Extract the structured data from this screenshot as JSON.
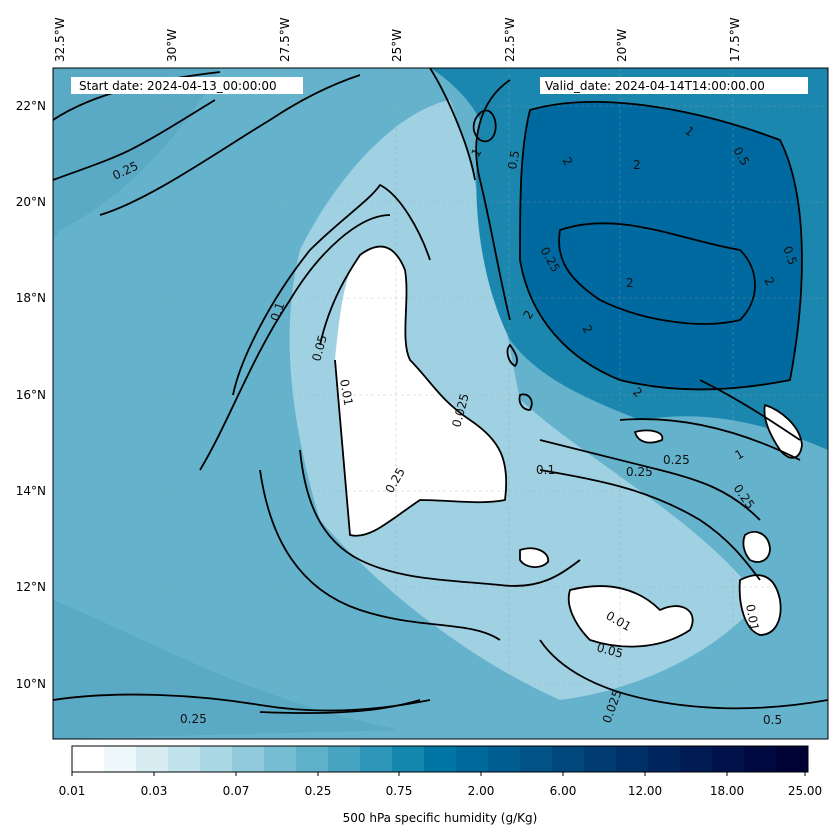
{
  "header": {
    "start_date": "Start date: 2024-04-13_00:00:00",
    "valid_date": "Valid_date: 2024-04-14T14:00:00.00"
  },
  "axes": {
    "lon_labels": [
      "32.5°W",
      "30°W",
      "27.5°W",
      "25°W",
      "22.5°W",
      "20°W",
      "17.5°W"
    ],
    "lat_labels": [
      "22°N",
      "20°N",
      "18°N",
      "16°N",
      "14°N",
      "12°N",
      "10°N"
    ]
  },
  "contour_labels": [
    "0.25",
    "0.1",
    "0.05",
    "0.01",
    "0.025",
    "0.25",
    "0.1",
    "0.25",
    "0.25",
    "0.25",
    "0.01",
    "0.05",
    "0.025",
    "0.01",
    "0.5",
    "1",
    "2",
    "2",
    "2",
    "2",
    "2",
    "2",
    "1",
    "0.5",
    "0.25",
    "0.5",
    "2",
    "1",
    "0.5",
    "0.25"
  ],
  "colorbar": {
    "tick_labels": [
      "0.01",
      "0.03",
      "0.07",
      "0.25",
      "0.75",
      "2.00",
      "6.00",
      "12.00",
      "18.00",
      "25.00"
    ],
    "label": "500 hPa specific humidity (g/Kg)",
    "colors": [
      "#ffffff",
      "#eef7f9",
      "#d8edf2",
      "#c1e3ec",
      "#a9d7e4",
      "#90cadc",
      "#78bed3",
      "#5fb1ca",
      "#47a4c1",
      "#2e96b8",
      "#1487af",
      "#0076a5",
      "#00699b",
      "#005d91",
      "#005287",
      "#00477c",
      "#003c72",
      "#003068",
      "#00255e",
      "#001b54",
      "#001249",
      "#00093f",
      "#000236"
    ]
  },
  "legend_colors": {
    "driest": "#ffffff",
    "dry": "#a9d7e4",
    "mid": "#5fb1ca",
    "moist": "#2e96b8",
    "wet": "#0076a5",
    "wettest": "#006aa0"
  }
}
